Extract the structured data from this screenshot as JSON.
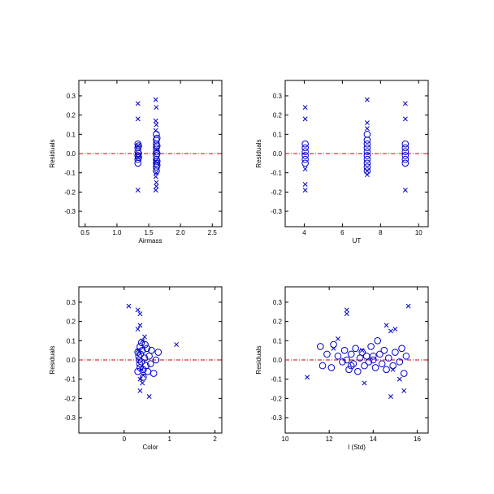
{
  "colors": {
    "marker": "#0000cc",
    "zero_line": "#cc0000",
    "frame": "#000000"
  },
  "chart_data": [
    {
      "type": "scatter",
      "xlabel": "Airmass",
      "ylabel": "Residuals",
      "xlim": [
        0.4,
        2.65
      ],
      "ylim": [
        -0.38,
        0.38
      ],
      "xticks": [
        0.5,
        1.0,
        1.5,
        2.0,
        2.5
      ],
      "xtick_labels": [
        "0.5",
        "1.0",
        "1.5",
        "2.0",
        "2.5"
      ],
      "yticks": [
        -0.3,
        -0.2,
        -0.1,
        0.0,
        0.1,
        0.2,
        0.3
      ],
      "ytick_labels": [
        "-0.3",
        "-0.2",
        "-0.1",
        "0.0",
        "0.1",
        "0.2",
        "0.3"
      ],
      "reference_line_y": 0.0,
      "series": [
        {
          "marker": "circle",
          "points": [
            [
              1.33,
              0.05
            ],
            [
              1.33,
              0.03
            ],
            [
              1.33,
              0.01
            ],
            [
              1.33,
              -0.01
            ],
            [
              1.33,
              -0.03
            ],
            [
              1.33,
              -0.05
            ],
            [
              1.34,
              0.04
            ],
            [
              1.34,
              0.0
            ],
            [
              1.34,
              -0.02
            ],
            [
              1.62,
              0.1
            ],
            [
              1.62,
              0.07
            ],
            [
              1.62,
              0.05
            ],
            [
              1.62,
              0.03
            ],
            [
              1.62,
              0.01
            ],
            [
              1.62,
              -0.01
            ],
            [
              1.62,
              -0.03
            ],
            [
              1.62,
              -0.05
            ],
            [
              1.62,
              -0.07
            ],
            [
              1.62,
              -0.09
            ],
            [
              1.63,
              0.08
            ],
            [
              1.63,
              0.04
            ],
            [
              1.63,
              0.0
            ],
            [
              1.63,
              -0.04
            ],
            [
              1.63,
              -0.06
            ]
          ]
        },
        {
          "marker": "cross",
          "points": [
            [
              1.33,
              0.26
            ],
            [
              1.33,
              0.18
            ],
            [
              1.33,
              0.04
            ],
            [
              1.33,
              -0.02
            ],
            [
              1.33,
              -0.19
            ],
            [
              1.61,
              0.28
            ],
            [
              1.62,
              0.24
            ],
            [
              1.61,
              0.17
            ],
            [
              1.62,
              0.15
            ],
            [
              1.61,
              0.12
            ],
            [
              1.62,
              0.02
            ],
            [
              1.61,
              -0.04
            ],
            [
              1.62,
              -0.1
            ],
            [
              1.61,
              -0.12
            ],
            [
              1.62,
              -0.15
            ],
            [
              1.62,
              -0.17
            ],
            [
              1.61,
              -0.19
            ]
          ]
        }
      ]
    },
    {
      "type": "scatter",
      "xlabel": "UT",
      "ylabel": "Residuals",
      "xlim": [
        3.0,
        10.5
      ],
      "ylim": [
        -0.38,
        0.38
      ],
      "xticks": [
        4,
        6,
        8,
        10
      ],
      "xtick_labels": [
        "4",
        "6",
        "8",
        "10"
      ],
      "yticks": [
        -0.3,
        -0.2,
        -0.1,
        0.0,
        0.1,
        0.2,
        0.3
      ],
      "ytick_labels": [
        "-0.3",
        "-0.2",
        "-0.1",
        "0.0",
        "0.1",
        "0.2",
        "0.3"
      ],
      "reference_line_y": 0.0,
      "series": [
        {
          "marker": "circle",
          "points": [
            [
              4.05,
              0.05
            ],
            [
              4.05,
              0.03
            ],
            [
              4.05,
              0.01
            ],
            [
              4.05,
              -0.01
            ],
            [
              4.05,
              -0.03
            ],
            [
              4.05,
              -0.05
            ],
            [
              7.3,
              0.1
            ],
            [
              7.3,
              0.07
            ],
            [
              7.3,
              0.05
            ],
            [
              7.3,
              0.03
            ],
            [
              7.3,
              0.01
            ],
            [
              7.3,
              -0.01
            ],
            [
              7.3,
              -0.03
            ],
            [
              7.3,
              -0.05
            ],
            [
              7.3,
              -0.07
            ],
            [
              7.3,
              -0.09
            ],
            [
              9.3,
              0.05
            ],
            [
              9.3,
              0.03
            ],
            [
              9.3,
              0.01
            ],
            [
              9.3,
              -0.01
            ],
            [
              9.3,
              -0.03
            ],
            [
              9.3,
              -0.05
            ]
          ]
        },
        {
          "marker": "cross",
          "points": [
            [
              4.05,
              0.24
            ],
            [
              4.05,
              0.18
            ],
            [
              4.05,
              -0.08
            ],
            [
              4.05,
              -0.16
            ],
            [
              4.05,
              -0.19
            ],
            [
              7.3,
              0.28
            ],
            [
              7.3,
              0.16
            ],
            [
              7.3,
              0.13
            ],
            [
              7.3,
              -0.11
            ],
            [
              7.3,
              -0.09
            ],
            [
              9.3,
              0.26
            ],
            [
              9.3,
              0.18
            ],
            [
              9.3,
              -0.19
            ]
          ]
        }
      ]
    },
    {
      "type": "scatter",
      "xlabel": "Color",
      "ylabel": "Residuals",
      "xlim": [
        -1.0,
        2.15
      ],
      "ylim": [
        -0.38,
        0.38
      ],
      "xticks": [
        0,
        1,
        2
      ],
      "xtick_labels": [
        "0",
        "1",
        "2"
      ],
      "yticks": [
        -0.3,
        -0.2,
        -0.1,
        0.0,
        0.1,
        0.2,
        0.3
      ],
      "ytick_labels": [
        "-0.3",
        "-0.2",
        "-0.1",
        "0.0",
        "0.1",
        "0.2",
        "0.3"
      ],
      "reference_line_y": 0.0,
      "series": [
        {
          "marker": "circle",
          "points": [
            [
              0.3,
              0.04
            ],
            [
              0.32,
              0.02
            ],
            [
              0.33,
              0.0
            ],
            [
              0.34,
              -0.02
            ],
            [
              0.35,
              -0.04
            ],
            [
              0.36,
              0.03
            ],
            [
              0.38,
              -0.01
            ],
            [
              0.4,
              0.05
            ],
            [
              0.42,
              -0.05
            ],
            [
              0.45,
              0.01
            ],
            [
              0.48,
              -0.03
            ],
            [
              0.5,
              0.06
            ],
            [
              0.52,
              -0.06
            ],
            [
              0.55,
              0.02
            ],
            [
              0.58,
              -0.02
            ],
            [
              0.6,
              0.05
            ],
            [
              0.65,
              -0.07
            ],
            [
              0.7,
              0.0
            ],
            [
              0.75,
              0.04
            ],
            [
              0.38,
              0.09
            ],
            [
              0.42,
              -0.09
            ],
            [
              0.3,
              -0.06
            ],
            [
              0.35,
              0.07
            ],
            [
              0.46,
              0.08
            ]
          ]
        },
        {
          "marker": "cross",
          "points": [
            [
              0.1,
              0.28
            ],
            [
              0.3,
              0.26
            ],
            [
              0.35,
              0.24
            ],
            [
              0.35,
              0.18
            ],
            [
              0.3,
              0.16
            ],
            [
              0.4,
              0.1
            ],
            [
              0.3,
              0.05
            ],
            [
              0.38,
              -0.05
            ],
            [
              0.35,
              -0.1
            ],
            [
              0.4,
              -0.12
            ],
            [
              0.35,
              -0.16
            ],
            [
              0.55,
              -0.19
            ],
            [
              1.15,
              0.08
            ],
            [
              0.45,
              0.12
            ],
            [
              0.42,
              -0.08
            ]
          ]
        }
      ]
    },
    {
      "type": "scatter",
      "xlabel": "I (Std)",
      "ylabel": "Residuals",
      "xlim": [
        10.0,
        16.5
      ],
      "ylim": [
        -0.38,
        0.38
      ],
      "xticks": [
        10,
        12,
        14,
        16
      ],
      "xtick_labels": [
        "10",
        "12",
        "14",
        "16"
      ],
      "yticks": [
        -0.3,
        -0.2,
        -0.1,
        0.0,
        0.1,
        0.2,
        0.3
      ],
      "ytick_labels": [
        "-0.3",
        "-0.2",
        "-0.1",
        "0.0",
        "0.1",
        "0.2",
        "0.3"
      ],
      "reference_line_y": 0.0,
      "series": [
        {
          "marker": "circle",
          "points": [
            [
              11.6,
              0.07
            ],
            [
              11.7,
              -0.03
            ],
            [
              11.9,
              0.03
            ],
            [
              12.1,
              -0.04
            ],
            [
              12.2,
              0.08
            ],
            [
              12.4,
              0.02
            ],
            [
              12.6,
              -0.01
            ],
            [
              12.7,
              0.05
            ],
            [
              12.8,
              0.0
            ],
            [
              12.9,
              -0.05
            ],
            [
              13.0,
              0.03
            ],
            [
              13.1,
              -0.02
            ],
            [
              13.2,
              0.06
            ],
            [
              13.3,
              -0.06
            ],
            [
              13.4,
              0.01
            ],
            [
              13.5,
              0.04
            ],
            [
              13.6,
              -0.03
            ],
            [
              13.7,
              0.02
            ],
            [
              13.8,
              -0.01
            ],
            [
              13.9,
              0.07
            ],
            [
              14.0,
              0.0
            ],
            [
              14.1,
              -0.04
            ],
            [
              14.2,
              0.1
            ],
            [
              14.3,
              0.03
            ],
            [
              14.4,
              -0.02
            ],
            [
              14.5,
              0.05
            ],
            [
              14.6,
              -0.05
            ],
            [
              14.7,
              0.01
            ],
            [
              14.9,
              -0.03
            ],
            [
              15.0,
              0.04
            ],
            [
              15.2,
              -0.01
            ],
            [
              15.3,
              0.06
            ],
            [
              15.4,
              -0.07
            ],
            [
              15.5,
              0.02
            ],
            [
              13.0,
              -0.03
            ],
            [
              14.0,
              0.02
            ]
          ]
        },
        {
          "marker": "cross",
          "points": [
            [
              11.0,
              -0.09
            ],
            [
              12.4,
              0.11
            ],
            [
              12.8,
              0.26
            ],
            [
              12.8,
              0.24
            ],
            [
              13.6,
              -0.12
            ],
            [
              14.6,
              0.18
            ],
            [
              14.8,
              0.15
            ],
            [
              14.8,
              -0.19
            ],
            [
              15.0,
              0.16
            ],
            [
              15.2,
              -0.1
            ],
            [
              15.4,
              -0.16
            ],
            [
              15.6,
              0.28
            ],
            [
              12.2,
              0.06
            ],
            [
              13.5,
              0.05
            ],
            [
              14.9,
              -0.05
            ]
          ]
        }
      ]
    }
  ]
}
